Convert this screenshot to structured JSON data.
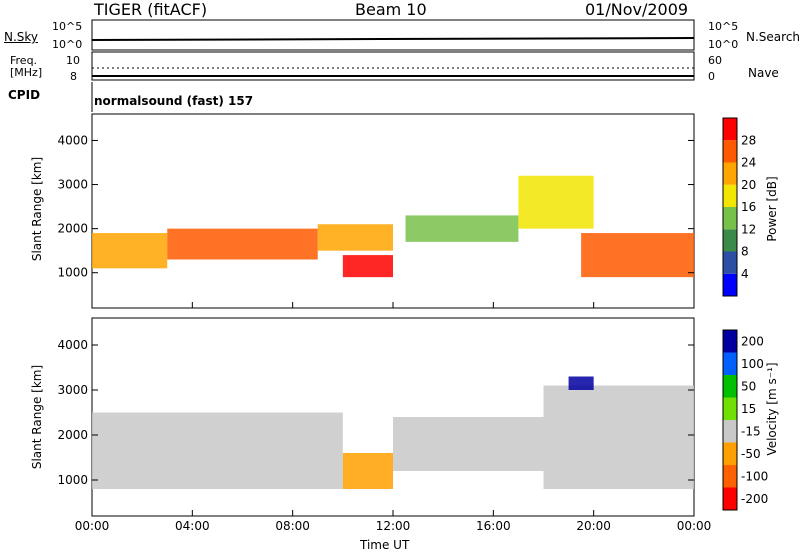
{
  "header": {
    "title": "TIGER (fitACF)",
    "beam": "Beam 10",
    "date": "01/Nov/2009"
  },
  "noise_panel": {
    "left_label": "N.Sky",
    "right_label": "N.Search",
    "ticks": [
      "10^5",
      "10^0"
    ]
  },
  "freq_panel": {
    "left_label": "Freq. [MHz]",
    "left_ticks": [
      "10",
      "8"
    ],
    "right_label": "Nave",
    "right_ticks": [
      "60",
      "0"
    ]
  },
  "cpid_panel": {
    "label": "CPID",
    "value": "normalsound (fast) 157"
  },
  "colors": {
    "power": [
      "#0000ff",
      "#2c4fa5",
      "#3c8a4a",
      "#77c14a",
      "#f2e500",
      "#ffa500",
      "#ff5a00",
      "#ff0000"
    ],
    "velocity": [
      "#0000a0",
      "#0060ff",
      "#00c000",
      "#70e000",
      "#c8c8c8",
      "#ffa000",
      "#ff6000",
      "#ff0000"
    ]
  },
  "chart_data": [
    {
      "type": "heatmap",
      "quantity": "power",
      "ylabel": "Slant Range [km]",
      "yticks": [
        1000,
        2000,
        3000,
        4000
      ],
      "ylim": [
        200,
        4600
      ],
      "xticks": [
        "00:00",
        "04:00",
        "08:00",
        "12:00",
        "16:00",
        "20:00",
        "00:00"
      ],
      "xlim_hours": [
        0,
        24
      ],
      "colorbar": {
        "label": "Power [dB]",
        "ticks": [
          "4",
          "8",
          "12",
          "16",
          "20",
          "24",
          "28"
        ]
      },
      "regions": [
        {
          "t": [
            0,
            3
          ],
          "range": [
            1100,
            1900
          ],
          "level": 20
        },
        {
          "t": [
            3,
            9
          ],
          "range": [
            1300,
            2000
          ],
          "level": 26
        },
        {
          "t": [
            9,
            12
          ],
          "range": [
            1500,
            2100
          ],
          "level": 22
        },
        {
          "t": [
            10,
            12
          ],
          "range": [
            900,
            1400
          ],
          "level": 28
        },
        {
          "t": [
            12.5,
            17
          ],
          "range": [
            1700,
            2300
          ],
          "level": 14
        },
        {
          "t": [
            17,
            20
          ],
          "range": [
            2000,
            3200
          ],
          "level": 18
        },
        {
          "t": [
            19.5,
            24
          ],
          "range": [
            900,
            1900
          ],
          "level": 24
        }
      ]
    },
    {
      "type": "heatmap",
      "quantity": "velocity",
      "ylabel": "Slant Range [km]",
      "yticks": [
        1000,
        2000,
        3000,
        4000
      ],
      "ylim": [
        200,
        4600
      ],
      "xticks": [
        "00:00",
        "04:00",
        "08:00",
        "12:00",
        "16:00",
        "20:00",
        "00:00"
      ],
      "xlim_hours": [
        0,
        24
      ],
      "xlabel": "Time UT",
      "colorbar": {
        "label": "Velocity [m s⁻¹]",
        "ticks": [
          "200",
          "100",
          "50",
          "15",
          "-15",
          "-50",
          "-100",
          "-200"
        ]
      },
      "regions": [
        {
          "t": [
            0,
            10
          ],
          "range": [
            800,
            2500
          ],
          "value": 0
        },
        {
          "t": [
            10,
            12
          ],
          "range": [
            800,
            1600
          ],
          "value": -50
        },
        {
          "t": [
            12,
            18
          ],
          "range": [
            1200,
            2400
          ],
          "value": 0
        },
        {
          "t": [
            18,
            24
          ],
          "range": [
            800,
            3100
          ],
          "value": 0
        },
        {
          "t": [
            19,
            20
          ],
          "range": [
            3000,
            3300
          ],
          "value": 200
        }
      ]
    }
  ]
}
